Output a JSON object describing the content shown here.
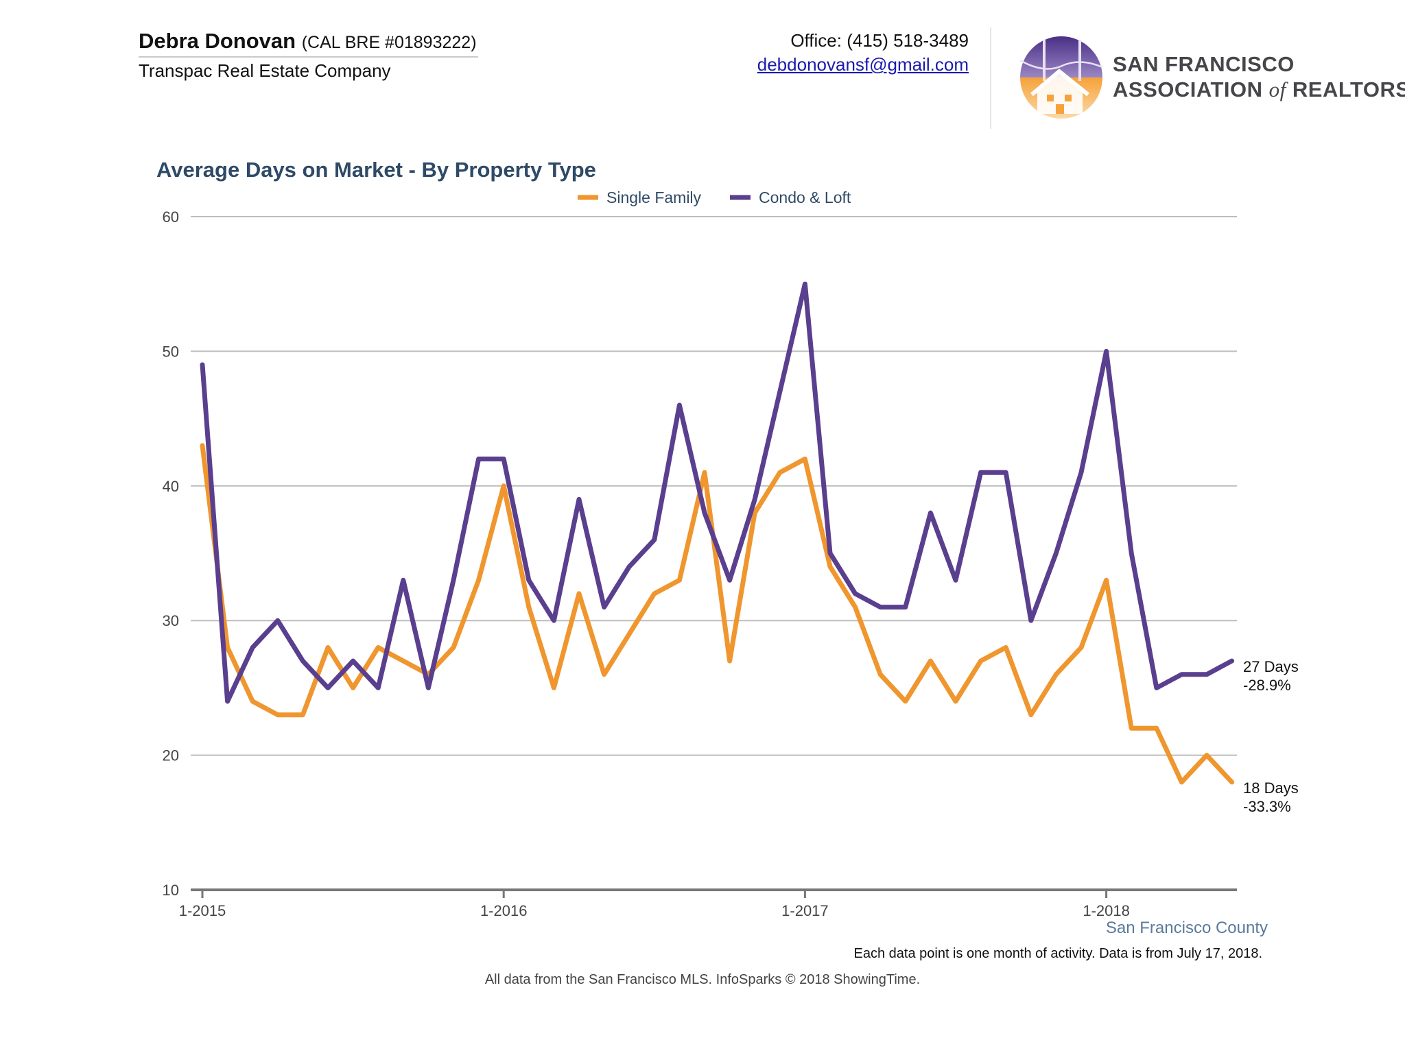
{
  "header": {
    "agent_name": "Debra Donovan",
    "agent_license": "(CAL BRE #01893222)",
    "company": "Transpac Real Estate Company",
    "phone": "Office: (415) 518-3489",
    "email": "debdonovansf@gmail.com",
    "logo_line1": "SAN FRANCISCO",
    "logo_line2_a": "ASSOCIATION",
    "logo_line2_of": "of",
    "logo_line2_b": "REALTORS",
    "logo_reg_mark": "®"
  },
  "footer": {
    "county": "San Francisco County",
    "data_note": "Each data point is one month of activity. Data is from July 17, 2018.",
    "source": "All data from the San Francisco MLS. InfoSparks © 2018 ShowingTime."
  },
  "colors": {
    "single_family": "#f0962e",
    "condo_loft": "#5a3f8f",
    "title": "#2e4a66",
    "grid": "#bdbdbd",
    "axis": "#777777"
  },
  "chart_data": {
    "type": "line",
    "title": "Average Days on Market - By Property Type",
    "xlabel": "",
    "ylabel": "",
    "ylim": [
      10,
      60
    ],
    "yticks": [
      10,
      20,
      30,
      40,
      50,
      60
    ],
    "xtick_labels": [
      "1-2015",
      "1-2016",
      "1-2017",
      "1-2018"
    ],
    "xtick_indices": [
      0,
      12,
      24,
      36
    ],
    "grid": true,
    "legend_position": "top-center",
    "series": [
      {
        "name": "Single Family",
        "color": "#f0962e",
        "values": [
          43,
          28,
          24,
          23,
          23,
          28,
          25,
          28,
          27,
          26,
          28,
          33,
          40,
          31,
          25,
          32,
          26,
          29,
          32,
          33,
          41,
          27,
          38,
          41,
          42,
          34,
          31,
          26,
          24,
          27,
          24,
          27,
          28,
          23,
          26,
          28,
          33,
          22,
          22,
          18,
          20,
          18
        ],
        "end_label_line1": "18 Days",
        "end_label_line2": "-33.3%"
      },
      {
        "name": "Condo & Loft",
        "color": "#5a3f8f",
        "values": [
          49,
          24,
          28,
          30,
          27,
          25,
          27,
          25,
          33,
          25,
          33,
          42,
          42,
          33,
          30,
          39,
          31,
          34,
          36,
          46,
          38,
          33,
          39,
          47,
          55,
          35,
          32,
          31,
          31,
          38,
          33,
          41,
          41,
          30,
          35,
          41,
          50,
          35,
          25,
          26,
          26,
          27
        ],
        "end_label_line1": "27 Days",
        "end_label_line2": "-28.9%"
      }
    ]
  }
}
